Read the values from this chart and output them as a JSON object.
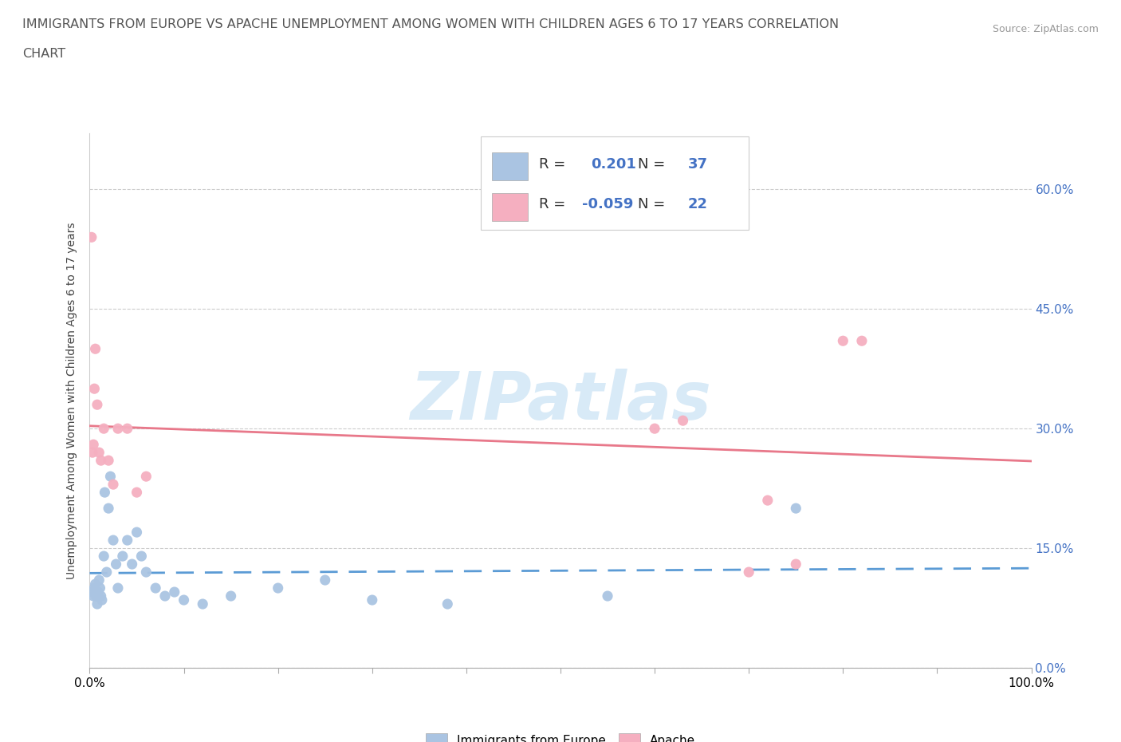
{
  "title_line1": "IMMIGRANTS FROM EUROPE VS APACHE UNEMPLOYMENT AMONG WOMEN WITH CHILDREN AGES 6 TO 17 YEARS CORRELATION",
  "title_line2": "CHART",
  "source": "Source: ZipAtlas.com",
  "ylabel": "Unemployment Among Women with Children Ages 6 to 17 years",
  "xlim": [
    0,
    100
  ],
  "ylim": [
    0,
    67
  ],
  "yticks": [
    0,
    15,
    30,
    45,
    60
  ],
  "ytick_labels": [
    "0.0%",
    "15.0%",
    "30.0%",
    "45.0%",
    "60.0%"
  ],
  "blue_R": 0.201,
  "blue_N": 37,
  "pink_R": -0.059,
  "pink_N": 22,
  "blue_color": "#aac4e2",
  "pink_color": "#f5afc0",
  "blue_line_color": "#5b9bd5",
  "pink_line_color": "#e8788a",
  "watermark_color": "#d8eaf7",
  "blue_points_x": [
    0.3,
    0.4,
    0.5,
    0.6,
    0.7,
    0.8,
    0.9,
    1.0,
    1.1,
    1.2,
    1.3,
    1.5,
    1.6,
    1.8,
    2.0,
    2.2,
    2.5,
    2.8,
    3.0,
    3.5,
    4.0,
    4.5,
    5.0,
    5.5,
    6.0,
    7.0,
    8.0,
    9.0,
    10.0,
    12.0,
    15.0,
    20.0,
    25.0,
    30.0,
    38.0,
    55.0,
    75.0
  ],
  "blue_points_y": [
    9.5,
    9.0,
    10.0,
    10.5,
    9.0,
    8.0,
    9.5,
    11.0,
    10.0,
    9.0,
    8.5,
    14.0,
    22.0,
    12.0,
    20.0,
    24.0,
    16.0,
    13.0,
    10.0,
    14.0,
    16.0,
    13.0,
    17.0,
    14.0,
    12.0,
    10.0,
    9.0,
    9.5,
    8.5,
    8.0,
    9.0,
    10.0,
    11.0,
    8.5,
    8.0,
    9.0,
    20.0
  ],
  "pink_points_x": [
    0.2,
    0.3,
    0.4,
    0.5,
    0.6,
    0.8,
    1.0,
    1.2,
    1.5,
    2.0,
    2.5,
    3.0,
    4.0,
    5.0,
    6.0,
    60.0,
    63.0,
    70.0,
    72.0,
    75.0,
    80.0,
    82.0
  ],
  "pink_points_y": [
    54.0,
    27.0,
    28.0,
    35.0,
    40.0,
    33.0,
    27.0,
    26.0,
    30.0,
    26.0,
    23.0,
    30.0,
    30.0,
    22.0,
    24.0,
    30.0,
    31.0,
    12.0,
    21.0,
    13.0,
    41.0,
    41.0
  ]
}
